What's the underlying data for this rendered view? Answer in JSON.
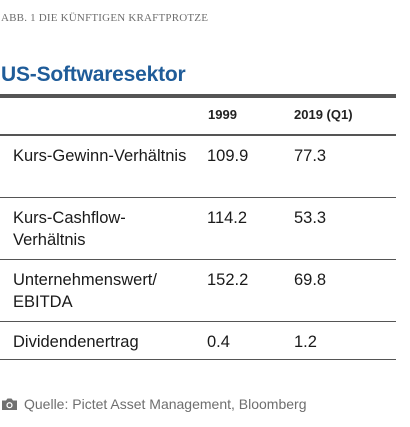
{
  "caption": "ABB. 1 DIE KÜNFTIGEN KRAFTPROTZE",
  "title": "US-Softwaresektor",
  "chart_data": {
    "type": "table",
    "columns": [
      "",
      "1999",
      "2019 (Q1)"
    ],
    "rows": [
      {
        "label": "Kurs-Gewinn-Verhältnis",
        "values": [
          "109.9",
          "77.3"
        ]
      },
      {
        "label": "Kurs-Cashflow-Verhältnis",
        "values": [
          "114.2",
          "53.3"
        ]
      },
      {
        "label": "Unternehmenswert/ EBITDA",
        "values": [
          "152.2",
          "69.8"
        ]
      },
      {
        "label": "Dividendenertrag",
        "values": [
          "0.4",
          "1.2"
        ]
      }
    ]
  },
  "source": {
    "icon": "camera-icon",
    "text": "Quelle: Pictet Asset Management, Bloomberg",
    "color": "#6e6e6e"
  },
  "colors": {
    "title": "#1f5c99",
    "rule": "#555555"
  }
}
